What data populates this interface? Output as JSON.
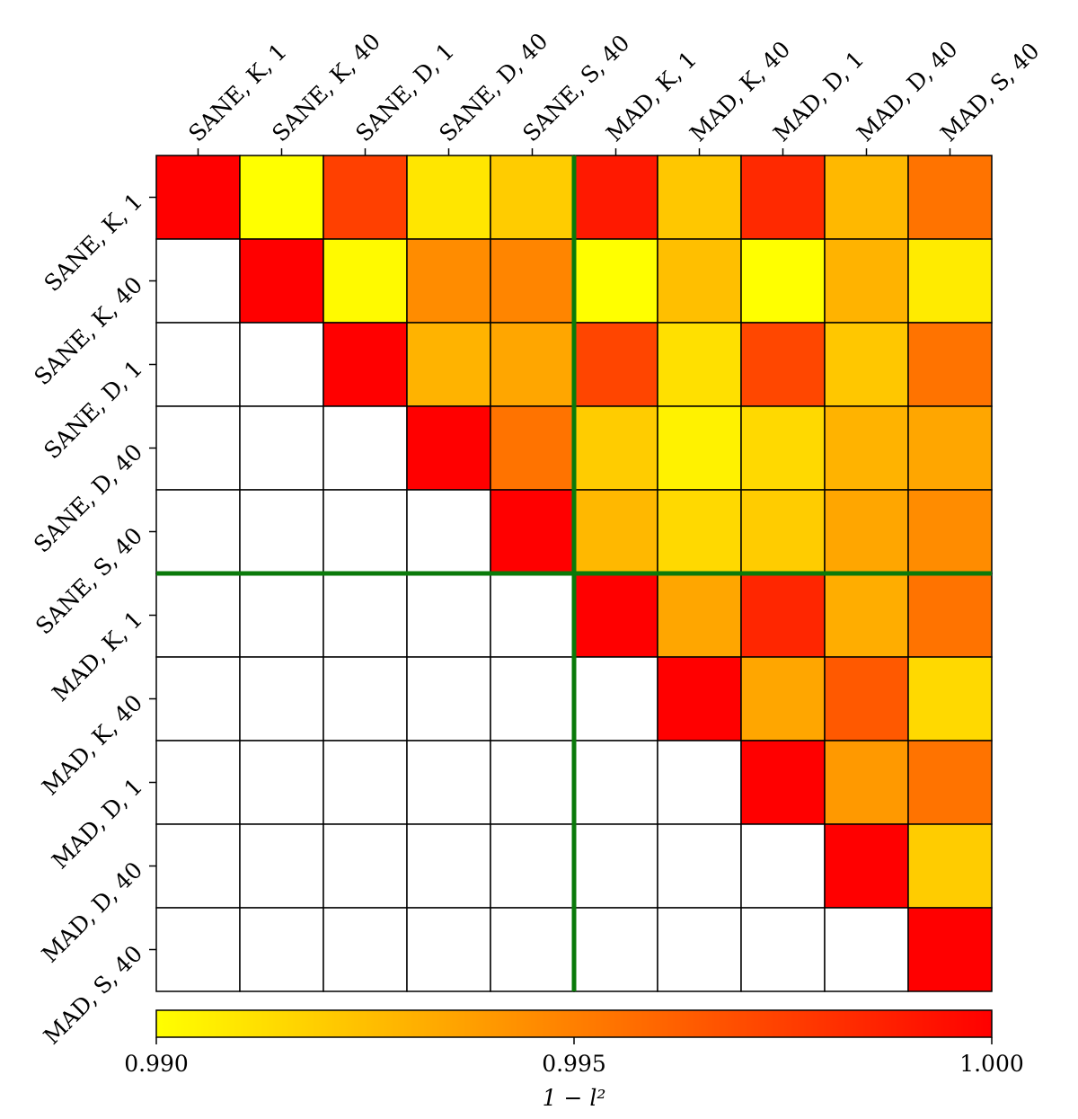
{
  "chart_data": {
    "type": "heatmap",
    "labels": [
      "SANE, K, 1",
      "SANE, K, 40",
      "SANE, D, 1",
      "SANE, D, 40",
      "SANE, S, 40",
      "MAD, K, 1",
      "MAD, K, 40",
      "MAD, D, 1",
      "MAD, D, 40",
      "MAD, S, 40"
    ],
    "matrix": [
      [
        1.0,
        0.99,
        0.9975,
        0.991,
        0.992,
        0.999,
        0.9922,
        0.9984,
        0.9928,
        0.9955
      ],
      [
        null,
        1.0,
        0.9902,
        0.9945,
        0.9948,
        0.99,
        0.9925,
        0.99,
        0.993,
        0.9908
      ],
      [
        null,
        null,
        1.0,
        0.993,
        0.9935,
        0.9973,
        0.9912,
        0.9972,
        0.9922,
        0.9955
      ],
      [
        null,
        null,
        null,
        1.0,
        0.9955,
        0.992,
        0.9905,
        0.9915,
        0.993,
        0.9935
      ],
      [
        null,
        null,
        null,
        null,
        1.0,
        0.9928,
        0.9915,
        0.992,
        0.9935,
        0.9945
      ],
      [
        null,
        null,
        null,
        null,
        null,
        1.0,
        0.9935,
        0.9985,
        0.9932,
        0.9955
      ],
      [
        null,
        null,
        null,
        null,
        null,
        null,
        1.0,
        0.9935,
        0.9965,
        0.9915
      ],
      [
        null,
        null,
        null,
        null,
        null,
        null,
        null,
        1.0,
        0.994,
        0.9955
      ],
      [
        null,
        null,
        null,
        null,
        null,
        null,
        null,
        null,
        1.0,
        0.992
      ],
      [
        null,
        null,
        null,
        null,
        null,
        null,
        null,
        null,
        null,
        1.0
      ]
    ],
    "colormap": "autumn_r",
    "color_min": "#ffff00",
    "color_max": "#ff0000",
    "divider_color": "#0a7a0a",
    "divider_after_index": 5,
    "colorbar": {
      "range": [
        0.99,
        1.0
      ],
      "ticks": [
        "0.990",
        "0.995",
        "1.000"
      ],
      "label": "1 − l²"
    }
  }
}
